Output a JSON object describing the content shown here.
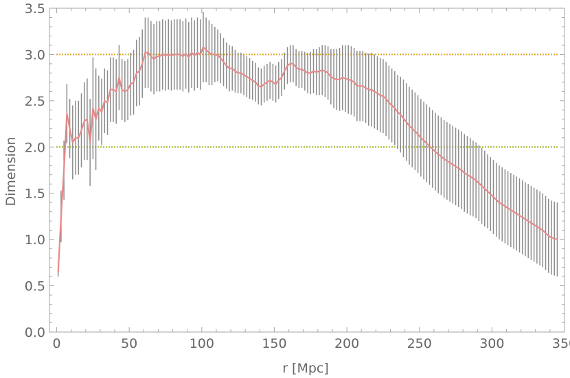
{
  "chart_data": {
    "type": "line",
    "xlabel": "r [Mpc]",
    "ylabel": "Dimension",
    "xlim": [
      -5,
      350
    ],
    "ylim": [
      0,
      3.5
    ],
    "xticks": [
      "0",
      "50",
      "100",
      "150",
      "200",
      "250",
      "300",
      "350"
    ],
    "yticks": [
      "0.0",
      "0.5",
      "1.0",
      "1.5",
      "2.0",
      "2.5",
      "3.0",
      "3.5"
    ],
    "reference_lines": [
      {
        "y": 3.0,
        "color": "#e3a526",
        "style": "dotted"
      },
      {
        "y": 2.0,
        "color": "#a6b322",
        "style": "dotted"
      }
    ],
    "series": [
      {
        "color": "#e68a8a",
        "errorbar_color": "#8c8c8c",
        "x": [
          1,
          3,
          5,
          7,
          9,
          11,
          13,
          15,
          17,
          19,
          21,
          23,
          25,
          27,
          29,
          31,
          33,
          35,
          37,
          39,
          41,
          43,
          45,
          47,
          49,
          51,
          53,
          55,
          57,
          59,
          61,
          63,
          65,
          67,
          69,
          71,
          73,
          75,
          77,
          79,
          81,
          83,
          85,
          87,
          89,
          91,
          93,
          95,
          97,
          99,
          101,
          103,
          105,
          107,
          109,
          111,
          113,
          115,
          117,
          119,
          121,
          123,
          125,
          127,
          129,
          131,
          133,
          135,
          137,
          139,
          141,
          143,
          145,
          147,
          149,
          151,
          153,
          155,
          157,
          159,
          161,
          163,
          165,
          167,
          169,
          171,
          173,
          175,
          177,
          179,
          181,
          183,
          185,
          187,
          189,
          191,
          193,
          195,
          197,
          199,
          201,
          203,
          205,
          207,
          209,
          211,
          213,
          215,
          217,
          219,
          221,
          223,
          225,
          227,
          229,
          231,
          233,
          235,
          237,
          239,
          241,
          243,
          245,
          247,
          249,
          251,
          253,
          255,
          257,
          259,
          261,
          263,
          265,
          267,
          269,
          271,
          273,
          275,
          277,
          279,
          281,
          283,
          285,
          287,
          289,
          291,
          293,
          295,
          297,
          299,
          301,
          303,
          305,
          307,
          309,
          311,
          313,
          315,
          317,
          319,
          321,
          323,
          325,
          327,
          329,
          331,
          333,
          335,
          337,
          339,
          341,
          343,
          345
        ],
        "y": [
          0.65,
          1.25,
          1.75,
          2.36,
          2.2,
          2.05,
          2.1,
          2.1,
          2.18,
          2.28,
          2.3,
          2.05,
          2.42,
          2.3,
          2.42,
          2.38,
          2.5,
          2.48,
          2.62,
          2.62,
          2.6,
          2.75,
          2.62,
          2.6,
          2.62,
          2.68,
          2.7,
          2.8,
          2.82,
          2.9,
          3.02,
          3.02,
          2.98,
          2.95,
          2.98,
          2.98,
          3.0,
          2.99,
          3.0,
          2.99,
          3.0,
          3.0,
          3.0,
          2.98,
          3.01,
          2.97,
          3.02,
          2.99,
          3.02,
          3.0,
          3.08,
          3.05,
          3.02,
          3.0,
          3.0,
          2.99,
          2.96,
          2.92,
          2.88,
          2.85,
          2.85,
          2.82,
          2.8,
          2.8,
          2.78,
          2.76,
          2.74,
          2.72,
          2.7,
          2.66,
          2.65,
          2.68,
          2.7,
          2.72,
          2.7,
          2.68,
          2.72,
          2.75,
          2.82,
          2.88,
          2.9,
          2.9,
          2.86,
          2.84,
          2.84,
          2.82,
          2.8,
          2.8,
          2.82,
          2.81,
          2.82,
          2.83,
          2.82,
          2.8,
          2.76,
          2.74,
          2.73,
          2.73,
          2.75,
          2.74,
          2.73,
          2.72,
          2.7,
          2.66,
          2.66,
          2.66,
          2.64,
          2.62,
          2.62,
          2.6,
          2.58,
          2.56,
          2.55,
          2.52,
          2.48,
          2.45,
          2.42,
          2.38,
          2.35,
          2.31,
          2.27,
          2.23,
          2.2,
          2.17,
          2.14,
          2.1,
          2.07,
          2.04,
          2.01,
          1.98,
          1.95,
          1.92,
          1.9,
          1.87,
          1.85,
          1.83,
          1.81,
          1.79,
          1.77,
          1.75,
          1.72,
          1.7,
          1.68,
          1.66,
          1.64,
          1.61,
          1.58,
          1.55,
          1.52,
          1.49,
          1.46,
          1.43,
          1.4,
          1.38,
          1.36,
          1.34,
          1.32,
          1.3,
          1.28,
          1.26,
          1.24,
          1.22,
          1.2,
          1.18,
          1.16,
          1.14,
          1.12,
          1.1,
          1.07,
          1.04,
          1.02,
          1.01,
          1.0
        ],
        "err": [
          0.05,
          0.28,
          0.32,
          0.32,
          0.32,
          0.4,
          0.4,
          0.4,
          0.4,
          0.42,
          0.44,
          0.47,
          0.55,
          0.55,
          0.35,
          0.36,
          0.35,
          0.35,
          0.35,
          0.35,
          0.35,
          0.35,
          0.33,
          0.33,
          0.33,
          0.34,
          0.35,
          0.36,
          0.37,
          0.37,
          0.38,
          0.38,
          0.38,
          0.38,
          0.38,
          0.38,
          0.38,
          0.38,
          0.38,
          0.38,
          0.38,
          0.38,
          0.38,
          0.38,
          0.38,
          0.38,
          0.38,
          0.38,
          0.38,
          0.38,
          0.38,
          0.35,
          0.35,
          0.33,
          0.3,
          0.28,
          0.27,
          0.26,
          0.25,
          0.25,
          0.24,
          0.23,
          0.22,
          0.22,
          0.22,
          0.22,
          0.22,
          0.21,
          0.21,
          0.2,
          0.2,
          0.2,
          0.2,
          0.2,
          0.2,
          0.2,
          0.2,
          0.2,
          0.2,
          0.2,
          0.2,
          0.2,
          0.2,
          0.2,
          0.2,
          0.21,
          0.22,
          0.23,
          0.24,
          0.25,
          0.26,
          0.27,
          0.28,
          0.29,
          0.3,
          0.32,
          0.33,
          0.34,
          0.35,
          0.36,
          0.37,
          0.37,
          0.37,
          0.38,
          0.38,
          0.38,
          0.38,
          0.39,
          0.4,
          0.4,
          0.4,
          0.4,
          0.4,
          0.4,
          0.4,
          0.4,
          0.4,
          0.4,
          0.41,
          0.42,
          0.42,
          0.42,
          0.42,
          0.42,
          0.42,
          0.42,
          0.42,
          0.42,
          0.42,
          0.42,
          0.42,
          0.42,
          0.42,
          0.42,
          0.42,
          0.42,
          0.42,
          0.42,
          0.42,
          0.42,
          0.42,
          0.42,
          0.42,
          0.41,
          0.41,
          0.41,
          0.41,
          0.41,
          0.4,
          0.4,
          0.4,
          0.4,
          0.4,
          0.4,
          0.4,
          0.4,
          0.4,
          0.4,
          0.4,
          0.4,
          0.4,
          0.4,
          0.4,
          0.4,
          0.4,
          0.4,
          0.4,
          0.4,
          0.4,
          0.4,
          0.4,
          0.4,
          0.4
        ]
      }
    ]
  }
}
